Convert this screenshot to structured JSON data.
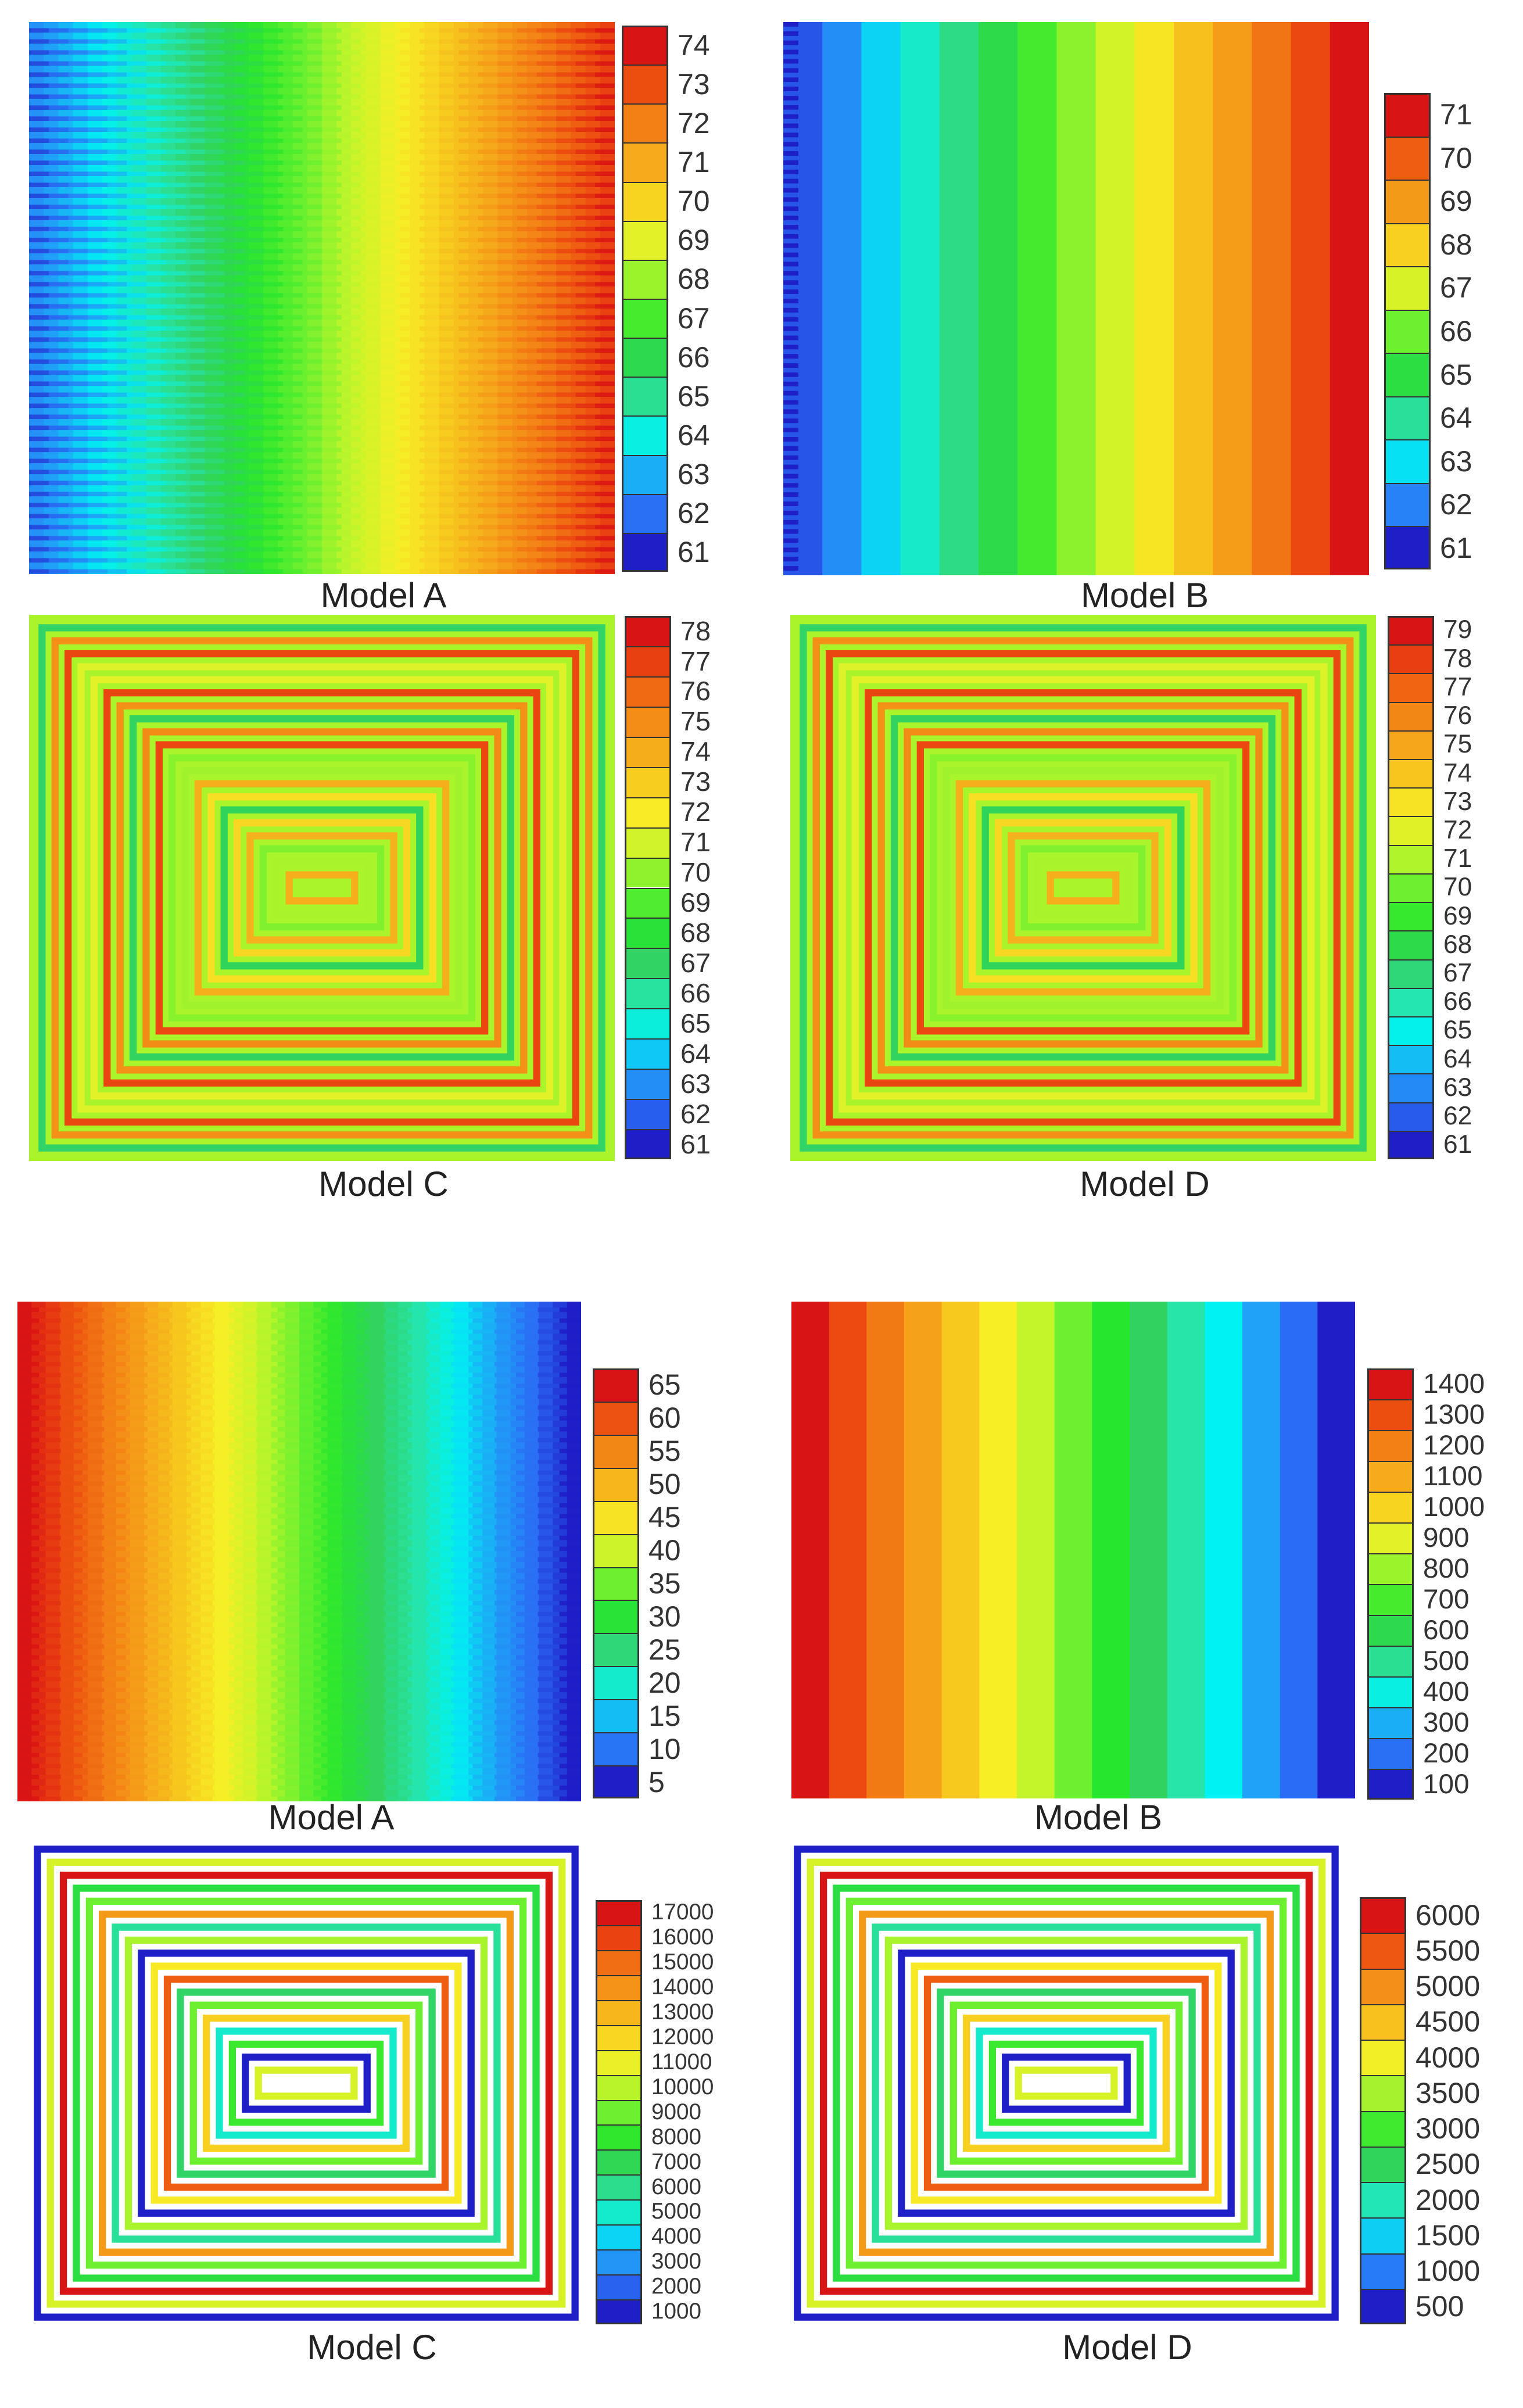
{
  "palette": [
    "#1f1fc8",
    "#2a6cf5",
    "#1fa2f7",
    "#00f2f2",
    "#27e4a8",
    "#32d260",
    "#27e62e",
    "#6cf02f",
    "#c4f52a",
    "#f7ee26",
    "#f7c91e",
    "#f5a21a",
    "#f27a14",
    "#ec4a10",
    "#d91414"
  ],
  "top_figure": {
    "panels": [
      {
        "caption": "Model A",
        "type": "straight",
        "direction": "ltr",
        "colorbar_ticks": [
          "74",
          "73",
          "72",
          "71",
          "70",
          "69",
          "68",
          "67",
          "66",
          "65",
          "64",
          "63",
          "62",
          "61"
        ]
      },
      {
        "caption": "Model B",
        "type": "bands",
        "direction": "ltr",
        "colorbar_ticks": [
          "71",
          "70",
          "69",
          "68",
          "67",
          "66",
          "65",
          "64",
          "63",
          "62",
          "61"
        ]
      },
      {
        "caption": "Model C",
        "type": "serpentine",
        "variant": "temperature",
        "colorbar_ticks": [
          "78",
          "77",
          "76",
          "75",
          "74",
          "73",
          "72",
          "71",
          "70",
          "69",
          "68",
          "67",
          "66",
          "65",
          "64",
          "63",
          "62",
          "61"
        ]
      },
      {
        "caption": "Model D",
        "type": "serpentine",
        "variant": "temperature",
        "colorbar_ticks": [
          "79",
          "78",
          "77",
          "76",
          "75",
          "74",
          "73",
          "72",
          "71",
          "70",
          "69",
          "68",
          "67",
          "66",
          "65",
          "64",
          "63",
          "62",
          "61"
        ]
      }
    ]
  },
  "bottom_figure": {
    "panels": [
      {
        "caption": "Model A",
        "type": "straight",
        "direction": "rtl",
        "colorbar_ticks": [
          "65",
          "60",
          "55",
          "50",
          "45",
          "40",
          "35",
          "30",
          "25",
          "20",
          "15",
          "10",
          "5"
        ]
      },
      {
        "caption": "Model B",
        "type": "bands",
        "direction": "rtl",
        "colorbar_ticks": [
          "1400",
          "1300",
          "1200",
          "1100",
          "1000",
          "900",
          "800",
          "700",
          "600",
          "500",
          "400",
          "300",
          "200",
          "100"
        ]
      },
      {
        "caption": "Model C",
        "type": "serpentine",
        "variant": "pressure",
        "colorbar_ticks": [
          "17000",
          "16000",
          "15000",
          "14000",
          "13000",
          "12000",
          "11000",
          "10000",
          "9000",
          "8000",
          "7000",
          "6000",
          "5000",
          "4000",
          "3000",
          "2000",
          "1000"
        ]
      },
      {
        "caption": "Model D",
        "type": "serpentine",
        "variant": "pressure",
        "colorbar_ticks": [
          "6000",
          "5500",
          "5000",
          "4500",
          "4000",
          "3500",
          "3000",
          "2500",
          "2000",
          "1500",
          "1000",
          "500"
        ]
      }
    ]
  }
}
